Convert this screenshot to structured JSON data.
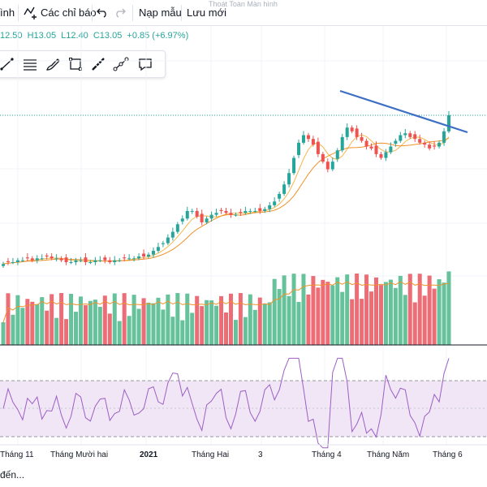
{
  "toolbar": {
    "item_fullscreen_partial": "ình",
    "indicators_label": "Các chỉ báo",
    "load_template_label": "Nạp mẫu",
    "save_label": "Lưu mới",
    "tooltip_fullscreen": "Thoát Toàn Màn hình"
  },
  "ohlc": {
    "open": "12.50",
    "high": "H13.05",
    "low": "L12.40",
    "close": "C13.05",
    "change": "+0.85 (+6.97%)"
  },
  "drawing_tools": [
    "line-icon",
    "fib-lines-icon",
    "brush-icon",
    "rectangle-icon",
    "ruler-icon",
    "path-icon",
    "comment-icon"
  ],
  "x_axis_labels": [
    "Tháng 11",
    "Tháng Mười hai",
    "2021",
    "Tháng Hai",
    "3",
    "Tháng 4",
    "Tháng Năm",
    "Tháng 6"
  ],
  "footer_text": "đến...",
  "colors": {
    "up": "#26a69a",
    "down": "#ef5350",
    "volume_up": "#66c29a",
    "volume_down": "#ec6d76",
    "ma_fast": "#f5b74d",
    "ma_slow": "#f0922b",
    "trendline": "#3c6fc4",
    "rsi": "#9c5fc4",
    "rsi_band": "#f1e6f5"
  },
  "chart_data": {
    "type": "candlestick",
    "indicators": [
      "Volume",
      "Moving Average",
      "RSI"
    ],
    "price_series_close": [
      5.2,
      5.3,
      5.3,
      5.4,
      5.4,
      5.5,
      5.4,
      5.5,
      5.5,
      5.6,
      5.5,
      5.5,
      5.4,
      5.3,
      5.3,
      5.4,
      5.4,
      5.3,
      5.3,
      5.4,
      5.4,
      5.4,
      5.3,
      5.4,
      5.4,
      5.5,
      5.5,
      5.5,
      5.6,
      5.6,
      5.7,
      5.9,
      6.1,
      6.3,
      6.6,
      6.9,
      7.3,
      7.6,
      8.0,
      8.0,
      7.7,
      7.4,
      7.6,
      7.8,
      7.9,
      8.0,
      7.9,
      7.8,
      7.8,
      7.9,
      8.0,
      8.0,
      8.0,
      8.0,
      8.1,
      8.3,
      8.5,
      8.9,
      9.4,
      10.0,
      10.8,
      11.6,
      12.0,
      11.8,
      11.5,
      11.0,
      10.6,
      10.2,
      10.6,
      11.2,
      11.9,
      12.4,
      12.2,
      11.9,
      11.7,
      11.4,
      11.3,
      11.0,
      10.8,
      11.1,
      11.4,
      11.7,
      12.0,
      12.1,
      11.9,
      11.8,
      11.6,
      11.5,
      11.3,
      11.4,
      11.6,
      12.2,
      13.05
    ],
    "rsi_bands": [
      30,
      70
    ],
    "trendline": "descending resistance from April high to June"
  }
}
